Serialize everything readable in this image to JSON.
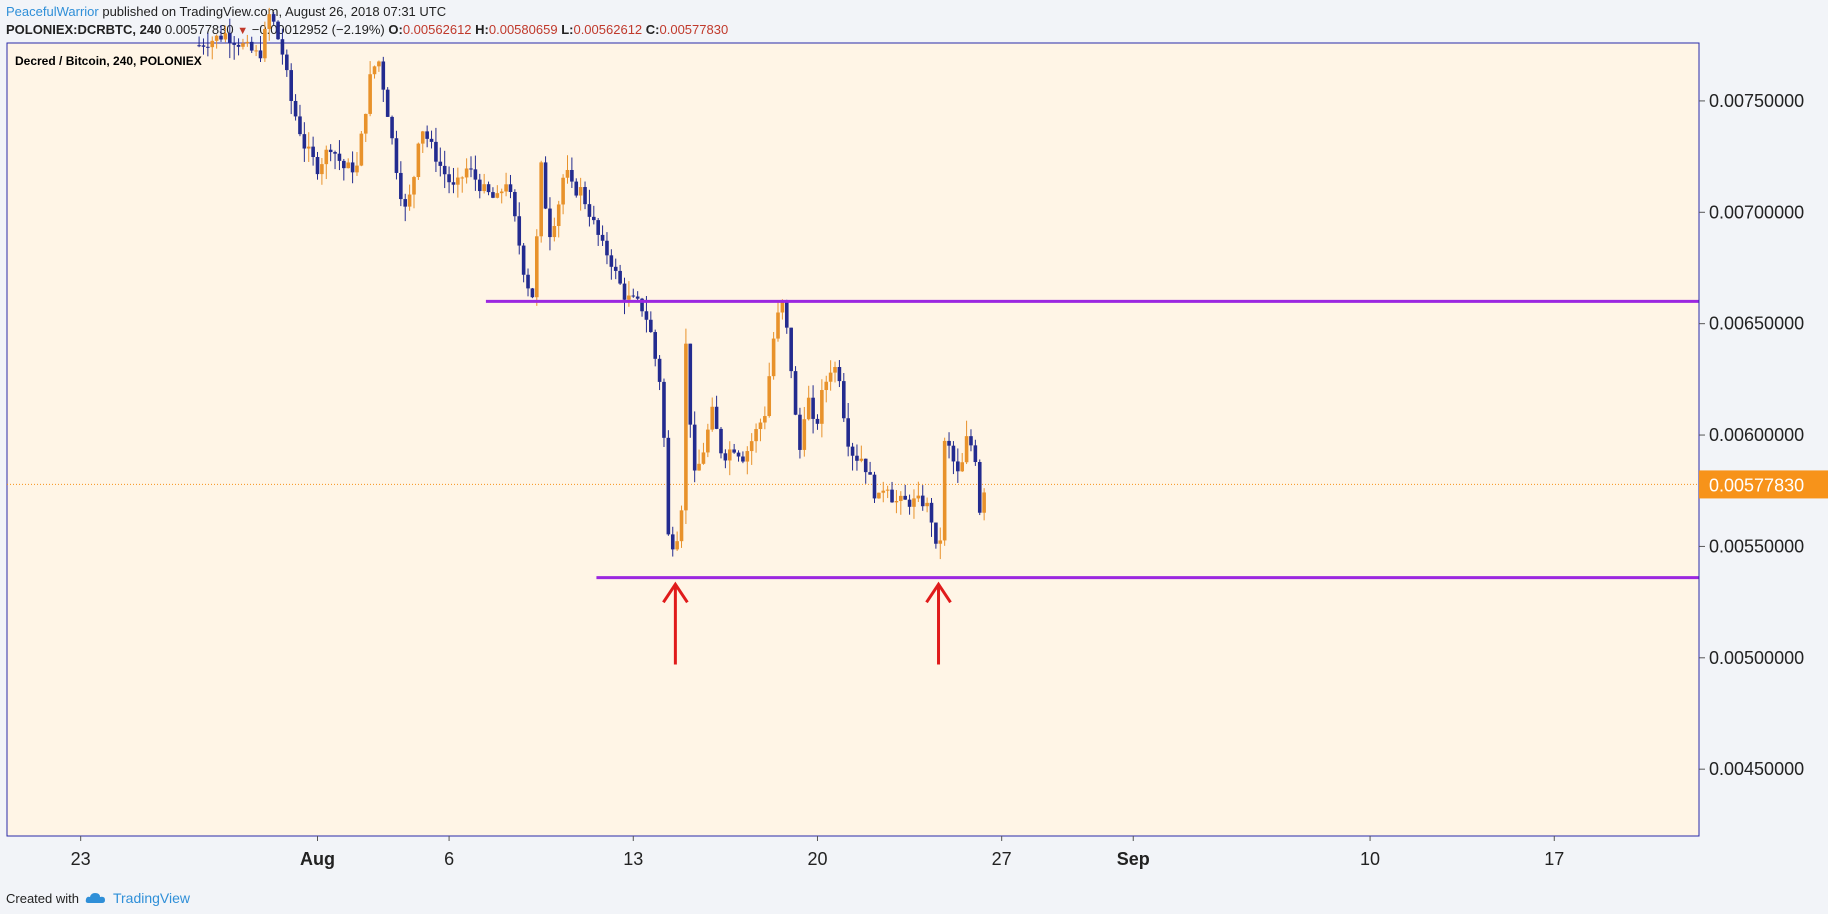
{
  "header": {
    "author": "PeacefulWarrior",
    "published_text": "published on TradingView.com, August 26, 2018 07:31 UTC",
    "symbol": "POLONIEX:DCRBTC, 240",
    "last": "0.00577830",
    "change": "−0.00012952 (−2.19%)",
    "o_label": "O:",
    "o": "0.00562612",
    "h_label": "H:",
    "h": "0.00580659",
    "l_label": "L:",
    "l": "0.00562612",
    "c_label": "C:",
    "c": "0.00577830",
    "down_icon": "triangle-down-icon"
  },
  "chart_title": "Decred / Bitcoin, 240, POLONIEX",
  "footer": {
    "created_with": "Created with",
    "brand": "TradingView"
  },
  "colors": {
    "background": "#fff5e6",
    "up": "#e8922b",
    "down": "#232b8f",
    "support": "#9b27e0",
    "arrow": "#e01b1b",
    "price_tag": "#f7931a",
    "border": "#2a2aa8"
  },
  "chart_data": {
    "type": "candlestick",
    "title": "Decred / Bitcoin, 240, POLONIEX",
    "ylim": [
      0.0042,
      0.00776
    ],
    "y_ticks": [
      "0.00750000",
      "0.00700000",
      "0.00650000",
      "0.00600000",
      "0.00550000",
      "0.00500000",
      "0.00450000"
    ],
    "y_tick_values": [
      0.0075,
      0.007,
      0.0065,
      0.006,
      0.0055,
      0.005,
      0.0045
    ],
    "x_ticks": [
      {
        "label": "23",
        "day": 0,
        "bold": false
      },
      {
        "label": "Aug",
        "day": 9,
        "bold": true
      },
      {
        "label": "6",
        "day": 14,
        "bold": false
      },
      {
        "label": "13",
        "day": 21,
        "bold": false
      },
      {
        "label": "20",
        "day": 28,
        "bold": false
      },
      {
        "label": "27",
        "day": 35,
        "bold": false
      },
      {
        "label": "Sep",
        "day": 40,
        "bold": true
      },
      {
        "label": "10",
        "day": 49,
        "bold": false
      },
      {
        "label": "17",
        "day": 56,
        "bold": false
      }
    ],
    "x_range_days": [
      -2.8,
      61.5
    ],
    "last_price": {
      "value": 0.0057783,
      "label": "0.00577830"
    },
    "horizontal_lines": [
      {
        "name": "resistance",
        "value": 0.0066,
        "from_day": 15.4
      },
      {
        "name": "support",
        "value": 0.00536,
        "from_day": 19.6
      }
    ],
    "arrows": [
      {
        "day": 22.6,
        "from": 0.00497,
        "to": 0.00533
      },
      {
        "day": 32.6,
        "from": 0.00497,
        "to": 0.00533
      }
    ],
    "candle_anchors": [
      [
        4.5,
        0.00775
      ],
      [
        5.5,
        0.0078
      ],
      [
        6.8,
        0.0077
      ],
      [
        7.2,
        0.0079
      ],
      [
        7.7,
        0.0077
      ],
      [
        8.0,
        0.0075
      ],
      [
        8.5,
        0.0073
      ],
      [
        9.0,
        0.0072
      ],
      [
        9.5,
        0.0073
      ],
      [
        10.0,
        0.0072
      ],
      [
        10.5,
        0.0072
      ],
      [
        11.0,
        0.0076
      ],
      [
        11.3,
        0.0077
      ],
      [
        11.6,
        0.0075
      ],
      [
        12.0,
        0.0072
      ],
      [
        12.3,
        0.007
      ],
      [
        12.6,
        0.0071
      ],
      [
        12.9,
        0.0074
      ],
      [
        13.3,
        0.0073
      ],
      [
        13.7,
        0.0072
      ],
      [
        14.2,
        0.0071
      ],
      [
        14.7,
        0.0072
      ],
      [
        15.3,
        0.0071
      ],
      [
        15.8,
        0.00705
      ],
      [
        16.2,
        0.00715
      ],
      [
        16.6,
        0.0069
      ],
      [
        16.9,
        0.0067
      ],
      [
        17.2,
        0.00662
      ],
      [
        17.5,
        0.0072
      ],
      [
        17.8,
        0.0069
      ],
      [
        18.1,
        0.007
      ],
      [
        18.4,
        0.0072
      ],
      [
        18.7,
        0.0071
      ],
      [
        19.0,
        0.0071
      ],
      [
        19.4,
        0.00698
      ],
      [
        19.8,
        0.00685
      ],
      [
        20.1,
        0.0068
      ],
      [
        20.4,
        0.0067
      ],
      [
        20.7,
        0.00662
      ],
      [
        21.0,
        0.0066
      ],
      [
        21.3,
        0.00658
      ],
      [
        21.6,
        0.0065
      ],
      [
        21.9,
        0.0063
      ],
      [
        22.1,
        0.0062
      ],
      [
        22.3,
        0.00555
      ],
      [
        22.6,
        0.0055
      ],
      [
        22.85,
        0.0057
      ],
      [
        23.0,
        0.0064
      ],
      [
        23.3,
        0.0058
      ],
      [
        23.6,
        0.0059
      ],
      [
        24.0,
        0.0061
      ],
      [
        24.4,
        0.0059
      ],
      [
        24.8,
        0.00595
      ],
      [
        25.2,
        0.0059
      ],
      [
        25.6,
        0.006
      ],
      [
        26.0,
        0.0061
      ],
      [
        26.4,
        0.0065
      ],
      [
        26.7,
        0.0066
      ],
      [
        27.0,
        0.0063
      ],
      [
        27.3,
        0.0059
      ],
      [
        27.6,
        0.0062
      ],
      [
        27.9,
        0.006
      ],
      [
        28.2,
        0.0062
      ],
      [
        28.5,
        0.0063
      ],
      [
        28.8,
        0.0063
      ],
      [
        29.1,
        0.006
      ],
      [
        29.4,
        0.0059
      ],
      [
        29.7,
        0.0059
      ],
      [
        30.0,
        0.0058
      ],
      [
        30.3,
        0.0057
      ],
      [
        30.6,
        0.0058
      ],
      [
        30.9,
        0.0057
      ],
      [
        31.2,
        0.0057
      ],
      [
        31.5,
        0.0057
      ],
      [
        31.8,
        0.0057
      ],
      [
        32.1,
        0.0057
      ],
      [
        32.4,
        0.0056
      ],
      [
        32.6,
        0.00537
      ],
      [
        32.85,
        0.006
      ],
      [
        33.1,
        0.0059
      ],
      [
        33.4,
        0.0058
      ],
      [
        33.7,
        0.006
      ],
      [
        34.0,
        0.0059
      ],
      [
        34.2,
        0.00562
      ],
      [
        34.35,
        0.00578
      ]
    ]
  }
}
